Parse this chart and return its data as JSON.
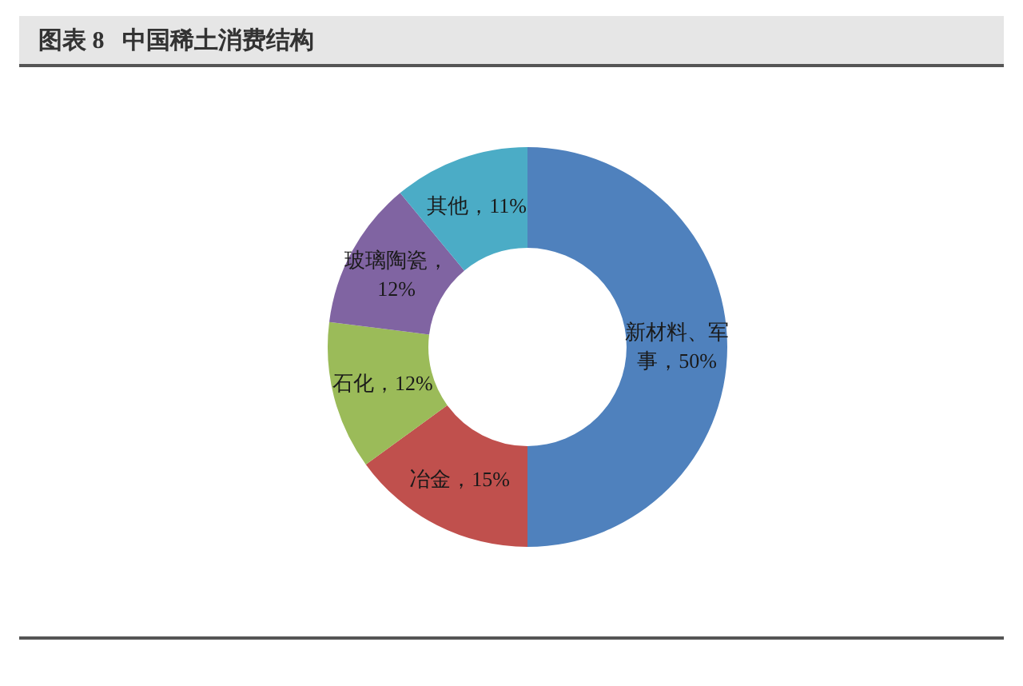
{
  "chart_data": {
    "type": "donut",
    "title": "图表 8   中国稀土消费结构",
    "categories": [
      "新材料、军事",
      "冶金",
      "石化",
      "玻璃陶瓷",
      "其他"
    ],
    "values": [
      50,
      15,
      12,
      12,
      11
    ],
    "colors": [
      "#4f81bd",
      "#c0504d",
      "#9bbb59",
      "#8064a2",
      "#4bacc6"
    ],
    "value_labels": [
      "，50%",
      "，15%",
      "，12%",
      "，12%",
      "，11%"
    ],
    "legend": false
  }
}
